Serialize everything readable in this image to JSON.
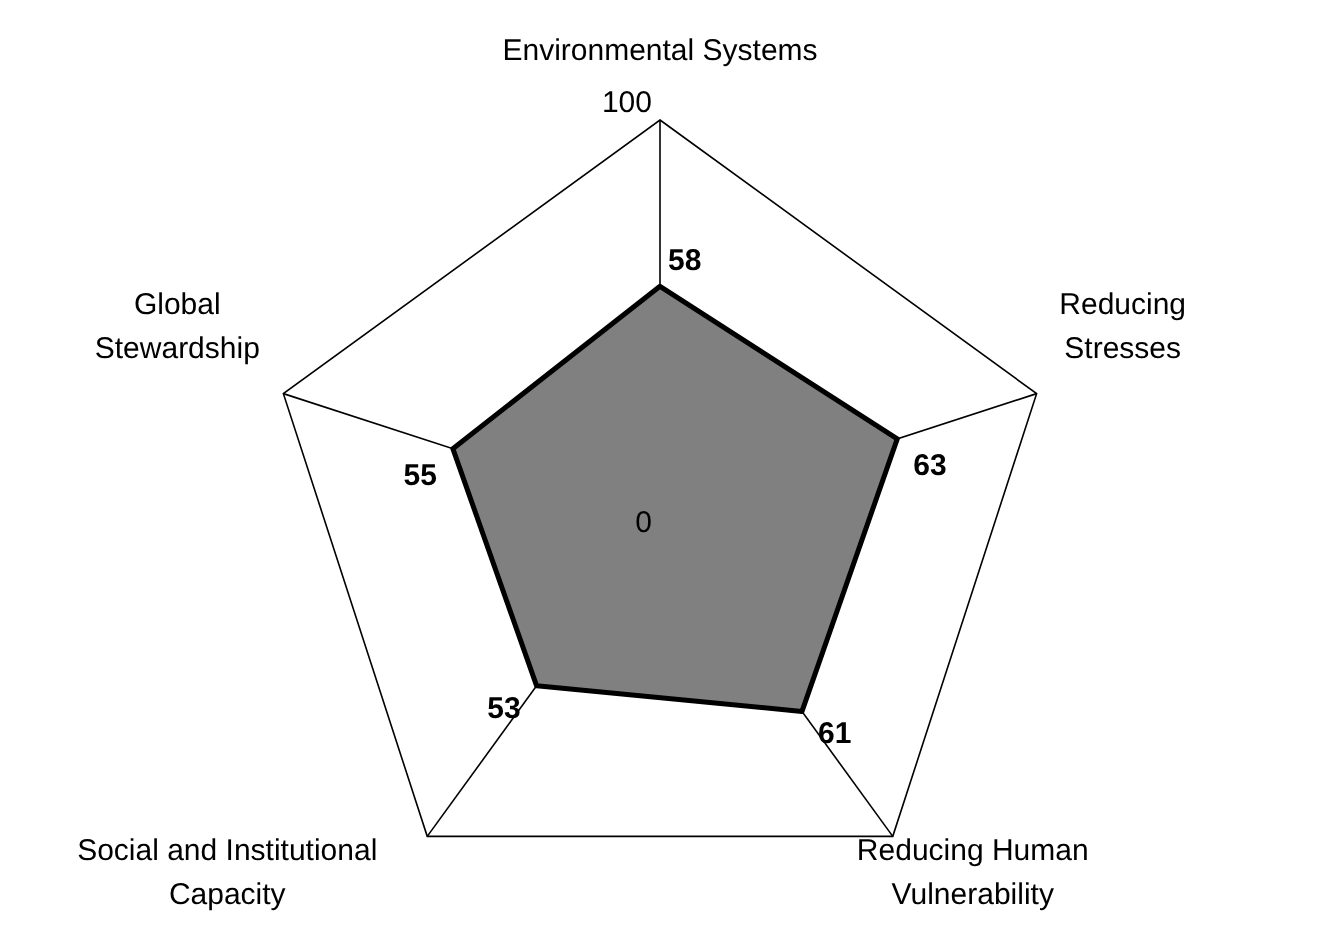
{
  "chart_data": {
    "type": "radar",
    "categories": [
      "Environmental Systems",
      "Reducing Stresses",
      "Reducing Human Vulnerability",
      "Social and Institutional Capacity",
      "Global Stewardship"
    ],
    "series": [
      {
        "color": "#808080",
        "values": [
          58,
          63,
          61,
          53,
          55
        ]
      }
    ],
    "ylim": [
      0,
      100
    ],
    "yticks": [
      0,
      100
    ],
    "data_labels": true,
    "grid": true
  }
}
